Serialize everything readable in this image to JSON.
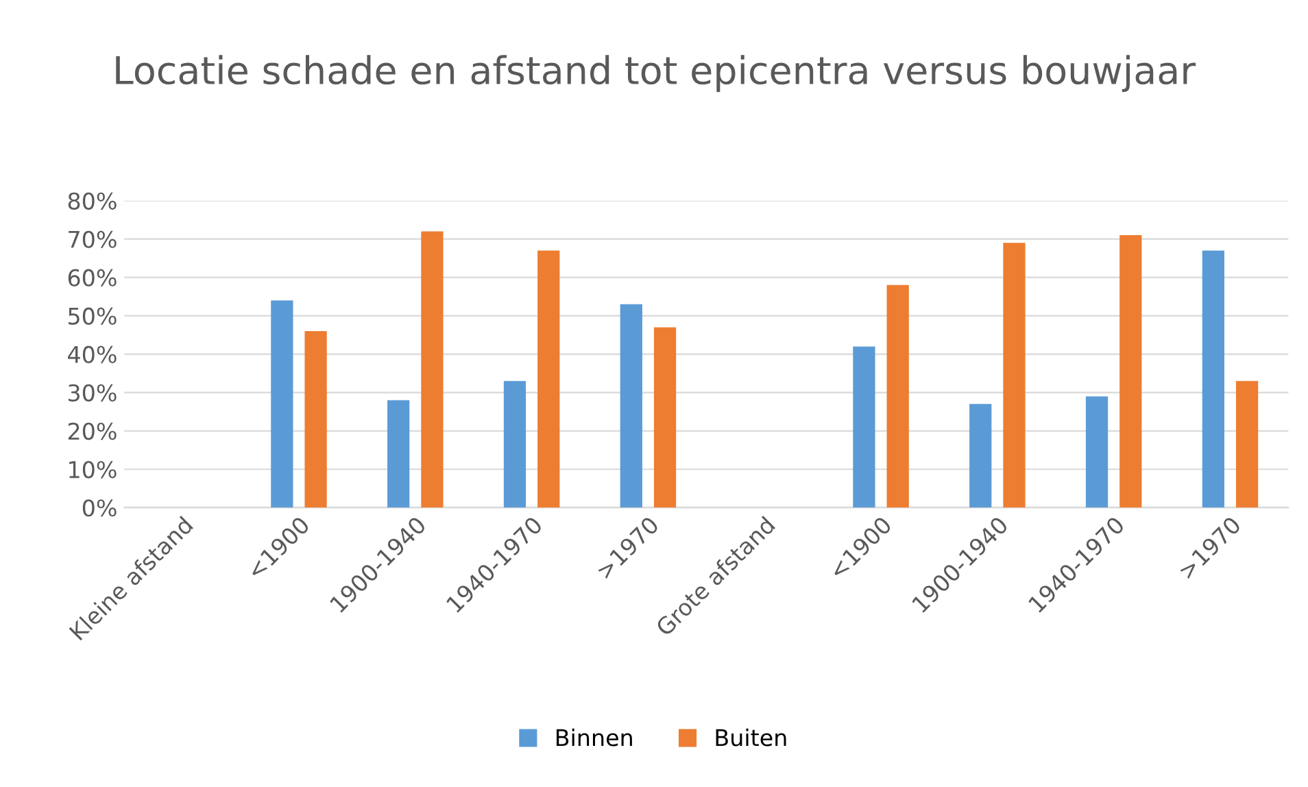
{
  "chart_data": {
    "type": "bar",
    "title": "Locatie schade en afstand tot epicentra versus bouwjaar",
    "categories": [
      "Kleine afstand",
      "<1900",
      "1900-1940",
      "1940-1970",
      ">1970",
      "Grote afstand",
      "<1900",
      "1900-1940",
      "1940-1970",
      ">1970"
    ],
    "series": [
      {
        "name": "Binnen",
        "color": "#5b9bd5",
        "values": [
          null,
          54,
          28,
          33,
          53,
          null,
          42,
          27,
          29,
          67
        ]
      },
      {
        "name": "Buiten",
        "color": "#ed7d31",
        "values": [
          null,
          46,
          72,
          67,
          47,
          null,
          58,
          69,
          71,
          33
        ]
      }
    ],
    "ylim": [
      0,
      80
    ],
    "yticks": [
      {
        "value": 0,
        "label": "0%"
      },
      {
        "value": 10,
        "label": "10%"
      },
      {
        "value": 20,
        "label": "20%"
      },
      {
        "value": 30,
        "label": "30%"
      },
      {
        "value": 40,
        "label": "40%"
      },
      {
        "value": 50,
        "label": "50%"
      },
      {
        "value": 60,
        "label": "60%"
      },
      {
        "value": 70,
        "label": "70%"
      },
      {
        "value": 80,
        "label": "80%"
      }
    ],
    "grid": "y",
    "legend": "bottom"
  }
}
